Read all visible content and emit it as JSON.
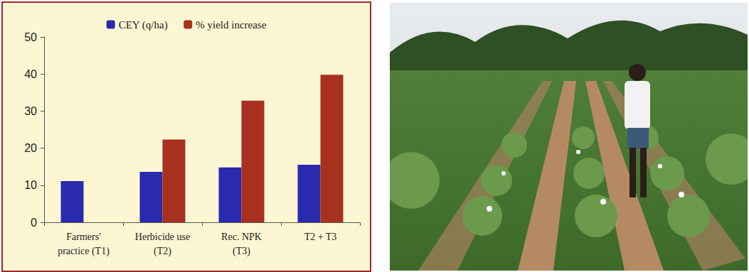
{
  "chart_data": {
    "type": "bar",
    "categories": [
      "Farmers'\npractice (T1)",
      "Herbicide use\n(T2)",
      "Rec. NPK\n(T3)",
      "T2 + T3"
    ],
    "series": [
      {
        "name": "CEY (q/ha)",
        "color": "#2a2aae",
        "values": [
          11.1,
          13.6,
          14.8,
          15.5
        ]
      },
      {
        "name": "% yield increase",
        "color": "#a8301e",
        "values": [
          null,
          22.3,
          32.8,
          39.8
        ]
      }
    ],
    "ylim": [
      0,
      50
    ],
    "yticks": [
      0,
      10,
      20,
      30,
      40,
      50
    ],
    "grid": false,
    "legend": "top"
  }
}
